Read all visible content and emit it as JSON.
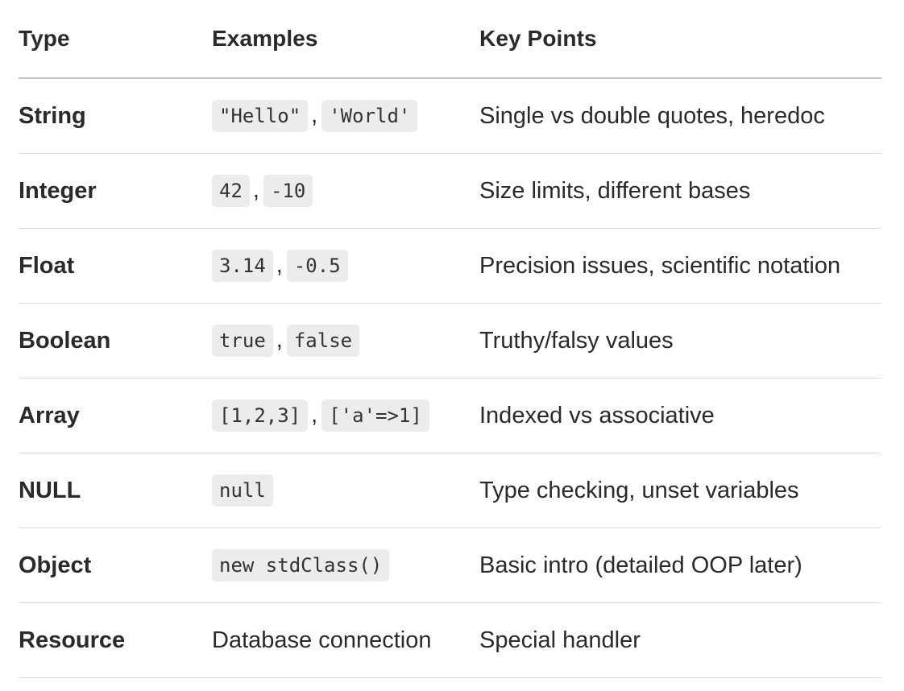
{
  "headers": {
    "type": "Type",
    "examples": "Examples",
    "key_points": "Key Points"
  },
  "rows": [
    {
      "type": "String",
      "examples": [
        "\"Hello\"",
        "'World'"
      ],
      "key_points": "Single vs double quotes, heredoc"
    },
    {
      "type": "Integer",
      "examples": [
        "42",
        "-10"
      ],
      "key_points": "Size limits, different bases"
    },
    {
      "type": "Float",
      "examples": [
        "3.14",
        "-0.5"
      ],
      "key_points": "Precision issues, scientific notation"
    },
    {
      "type": "Boolean",
      "examples": [
        "true",
        "false"
      ],
      "key_points": "Truthy/falsy values"
    },
    {
      "type": "Array",
      "examples": [
        "[1,2,3]",
        "['a'=>1]"
      ],
      "key_points": "Indexed vs associative"
    },
    {
      "type": "NULL",
      "examples": [
        "null"
      ],
      "key_points": "Type checking, unset variables"
    },
    {
      "type": "Object",
      "examples": [
        "new stdClass()"
      ],
      "key_points": "Basic intro (detailed OOP later)"
    },
    {
      "type": "Resource",
      "examples_text": "Database connection",
      "key_points": "Special handler"
    }
  ],
  "separator": ","
}
